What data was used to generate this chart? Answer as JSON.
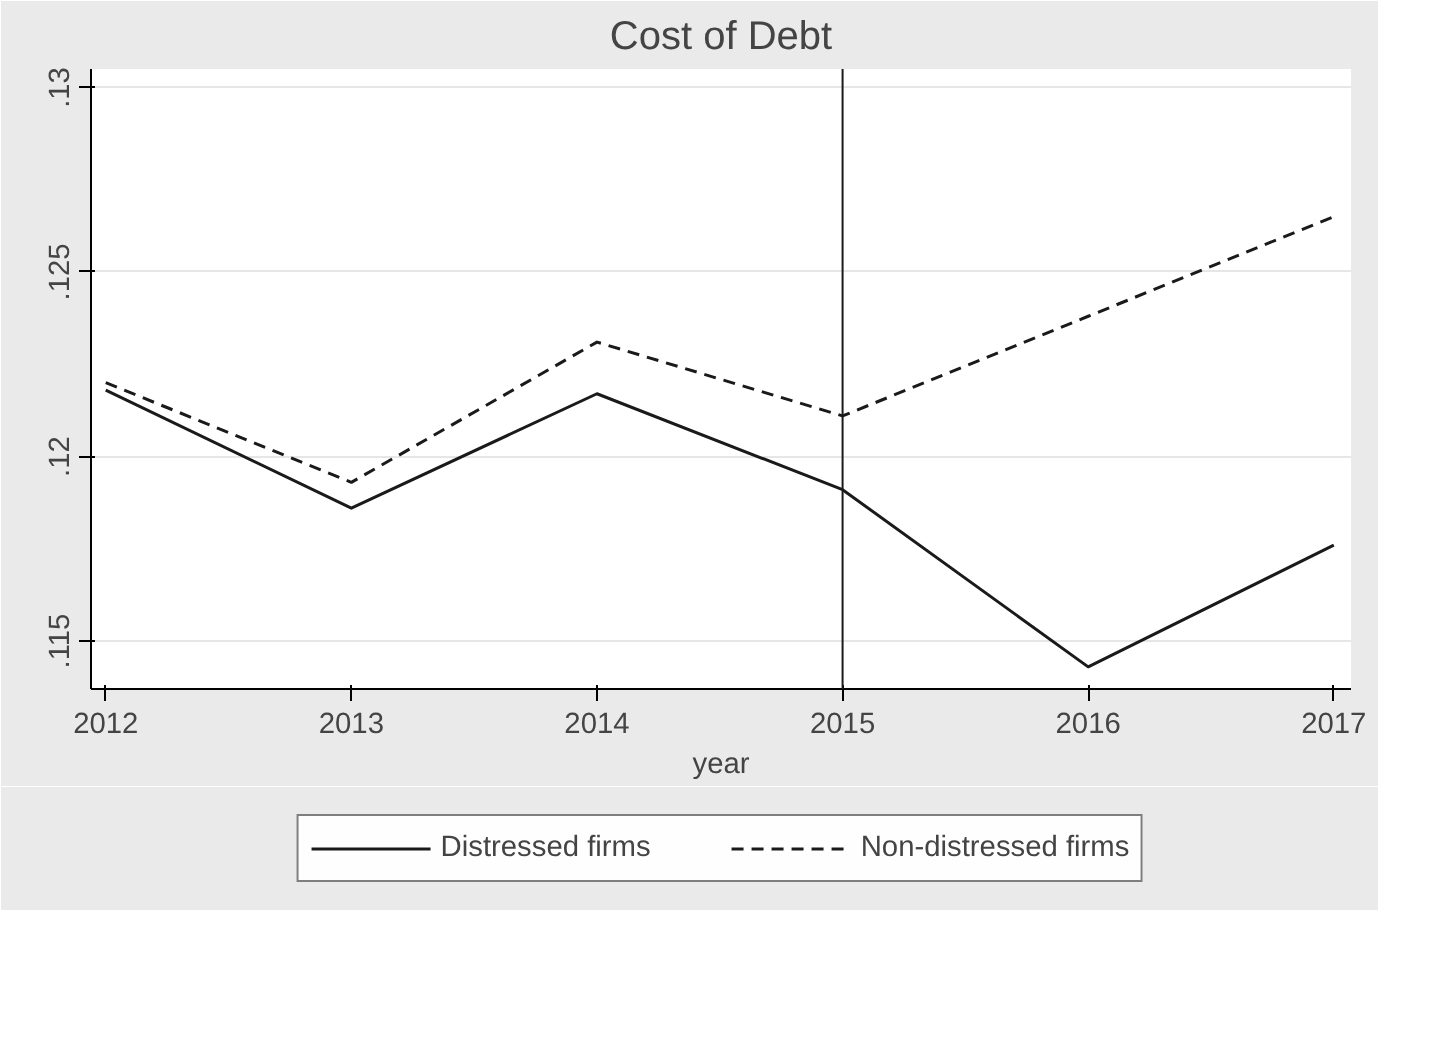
{
  "chart_data": {
    "type": "line",
    "title": "Cost of Debt",
    "xlabel": "year",
    "x": [
      2012,
      2013,
      2014,
      2015,
      2016,
      2017
    ],
    "series": [
      {
        "name": "Distressed firms",
        "color": "#1a1a1a",
        "line_style": "solid",
        "values": [
          0.1218,
          0.1186,
          0.1217,
          0.1191,
          0.1143,
          0.1176
        ]
      },
      {
        "name": "Non-distressed firms",
        "color": "#1a1a1a",
        "line_style": "dashed",
        "values": [
          0.122,
          0.1193,
          0.1231,
          0.1211,
          0.1238,
          0.1265
        ]
      }
    ],
    "xlim": [
      2011.94,
      2017.07
    ],
    "ylim": [
      0.1137,
      0.1305
    ],
    "xticks": [
      2012,
      2013,
      2014,
      2015,
      2016,
      2017
    ],
    "yticks": [
      {
        "value": 0.115,
        "label": ".115"
      },
      {
        "value": 0.12,
        "label": ".12"
      },
      {
        "value": 0.125,
        "label": ".125"
      },
      {
        "value": 0.13,
        "label": ".13"
      }
    ],
    "ref_lines": [
      {
        "axis": "x",
        "value": 2015,
        "color": "#1a1a1a"
      }
    ],
    "grid": "y",
    "legend": "bottom",
    "marker": "none"
  }
}
